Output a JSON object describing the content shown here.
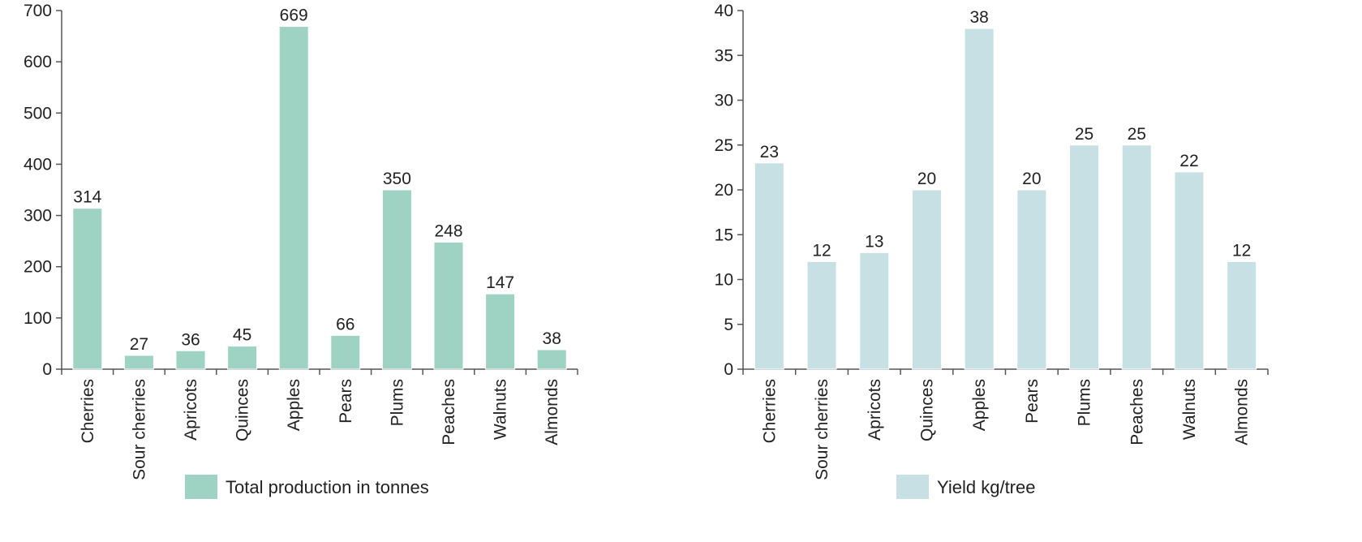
{
  "chart_data": [
    {
      "type": "bar",
      "categories": [
        "Cherries",
        "Sour cherries",
        "Apricots",
        "Quinces",
        "Apples",
        "Pears",
        "Plums",
        "Peaches",
        "Walnuts",
        "Almonds"
      ],
      "series": [
        {
          "name": "Total production in tonnes",
          "values": [
            314,
            27,
            36,
            45,
            669,
            66,
            350,
            248,
            147,
            38
          ]
        }
      ],
      "ylim": [
        0,
        700
      ],
      "yticks": [
        0,
        100,
        200,
        300,
        400,
        500,
        600,
        700
      ],
      "grid": false,
      "legend_position": "bottom",
      "color": "#9ed2c2",
      "data_labels": true
    },
    {
      "type": "bar",
      "categories": [
        "Cherries",
        "Sour cherries",
        "Apricots",
        "Quinces",
        "Apples",
        "Pears",
        "Plums",
        "Peaches",
        "Walnuts",
        "Almonds"
      ],
      "series": [
        {
          "name": "Yield kg/tree",
          "values": [
            23,
            12,
            13,
            20,
            38,
            20,
            25,
            25,
            22,
            12
          ]
        }
      ],
      "ylim": [
        0,
        40
      ],
      "yticks": [
        0,
        5,
        10,
        15,
        20,
        25,
        30,
        35,
        40
      ],
      "grid": false,
      "legend_position": "bottom",
      "color": "#c7e0e3",
      "data_labels": true
    }
  ]
}
